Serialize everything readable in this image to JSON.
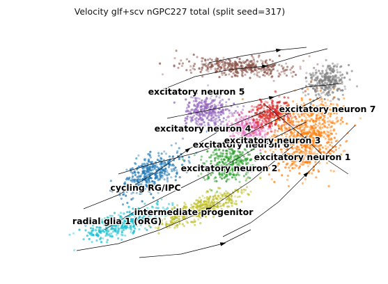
{
  "chart_data": {
    "type": "scatter",
    "title": "Velocity glf+scv nGPC227 total (split seed=317)",
    "xlabel": "",
    "ylabel": "",
    "axes_visible": false,
    "grid": false,
    "legend": "on data",
    "overlay": "velocity streamlines with arrowheads",
    "x_range": [
      0,
      100
    ],
    "y_range": [
      0,
      100
    ],
    "clusters": [
      {
        "name": "radial glia 1 (oRG)",
        "color": "#17becf",
        "center": [
          28,
          20
        ]
      },
      {
        "name": "cycling RG/IPC",
        "color": "#1f77b4",
        "center": [
          36,
          40
        ]
      },
      {
        "name": "intermediate progenitor",
        "color": "#bcbd22",
        "center": [
          50,
          26
        ]
      },
      {
        "name": "excitatory neuron 2",
        "color": "#2ca02c",
        "center": [
          58,
          44
        ]
      },
      {
        "name": "excitatory neuron 4",
        "color": "#9467bd",
        "center": [
          52,
          65
        ]
      },
      {
        "name": "excitatory neuron 6",
        "color": "#e377c2",
        "center": [
          64,
          58
        ]
      },
      {
        "name": "excitatory neuron 3",
        "color": "#d62728",
        "center": [
          71,
          64
        ]
      },
      {
        "name": "excitatory neuron 5",
        "color": "#8c564b",
        "center": [
          61,
          83
        ]
      },
      {
        "name": "excitatory neuron 1",
        "color": "#ff7f0e",
        "center": [
          81,
          55
        ]
      },
      {
        "name": "excitatory neuron 7",
        "color": "#7f7f7f",
        "center": [
          87,
          77
        ]
      }
    ]
  }
}
